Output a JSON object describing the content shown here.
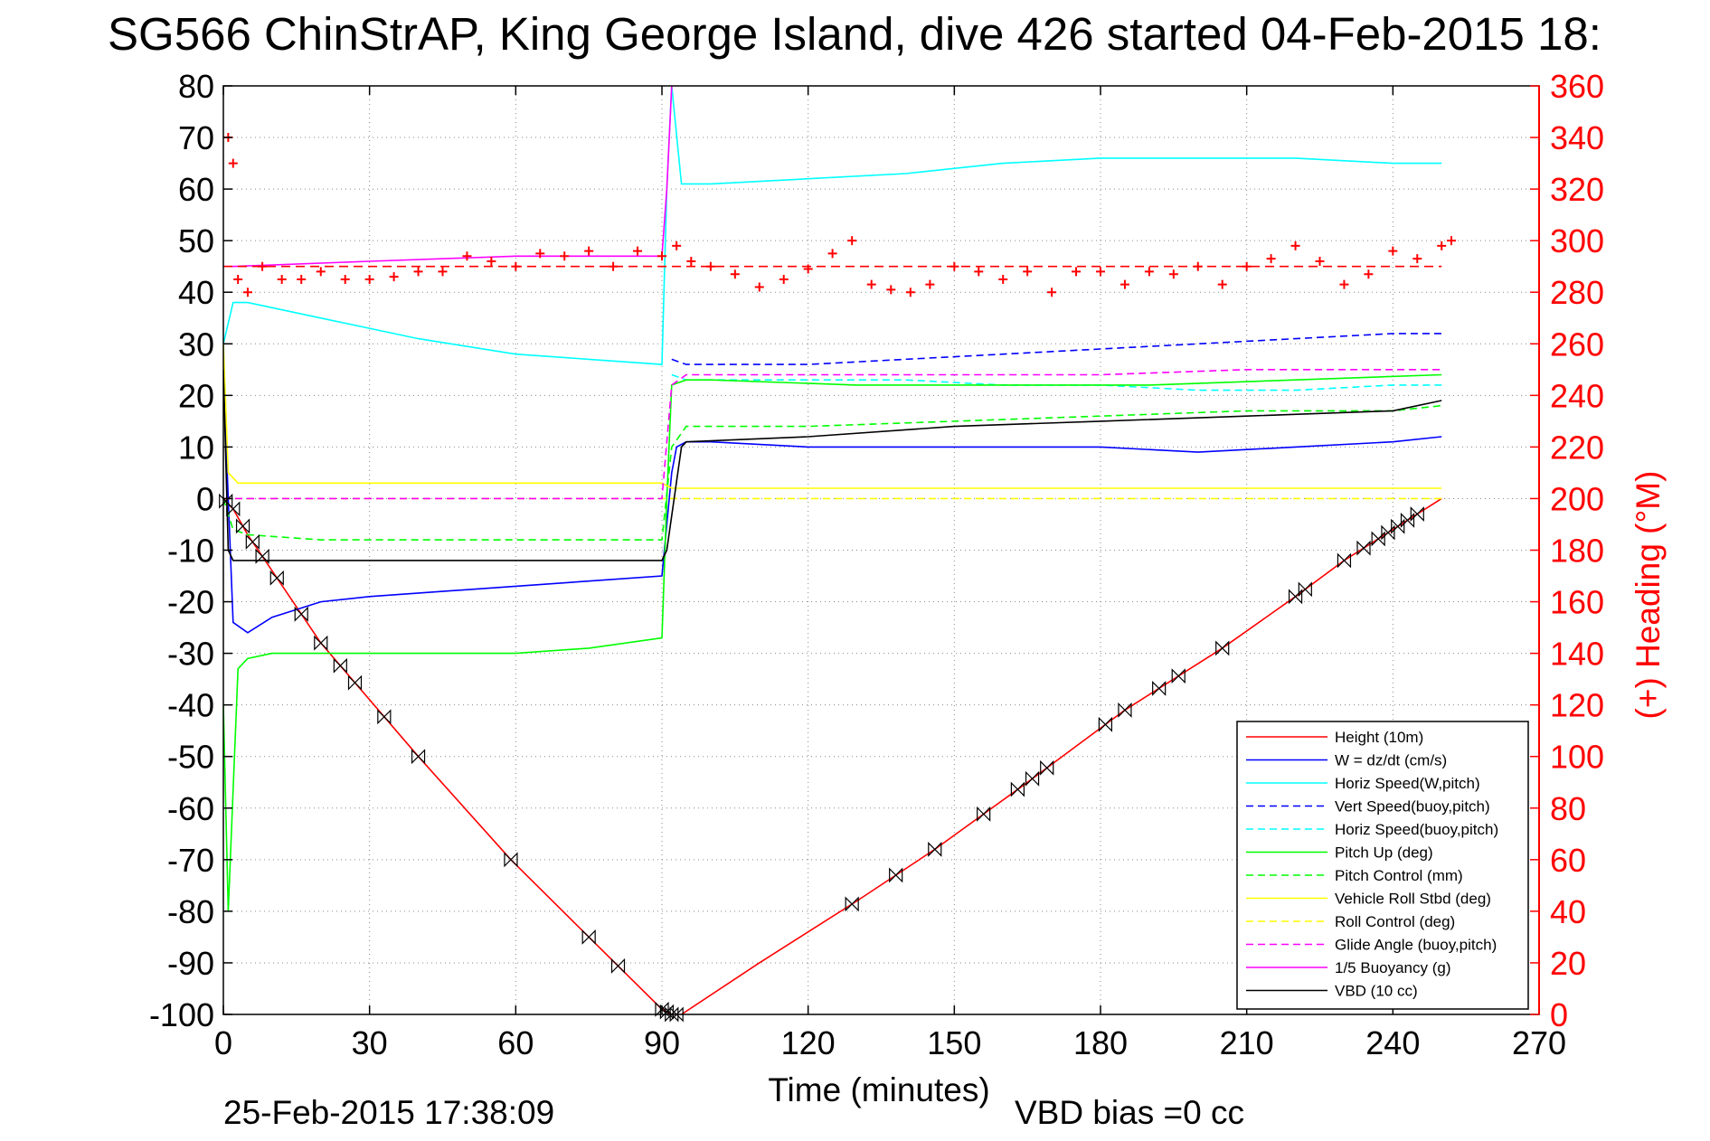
{
  "chart_data": {
    "type": "line",
    "title": "SG566 ChinStrAP, King George Island, dive 426 started 04-Feb-2015 18:",
    "xlabel": "Time (minutes)",
    "ylabel_right": "(+) Heading (°M)",
    "footer_left": "25-Feb-2015 17:38:09",
    "footer_right": "VBD bias =0 cc",
    "xlim": [
      0,
      270
    ],
    "ylim": [
      -100,
      80
    ],
    "y2lim": [
      0,
      360
    ],
    "x_ticks": [
      0,
      30,
      60,
      90,
      120,
      150,
      180,
      210,
      240,
      270
    ],
    "y_ticks": [
      80,
      70,
      60,
      50,
      40,
      30,
      20,
      10,
      0,
      -10,
      -20,
      -30,
      -40,
      -50,
      -60,
      -70,
      -80,
      -90,
      -100
    ],
    "y2_ticks": [
      360,
      340,
      320,
      300,
      280,
      260,
      240,
      220,
      200,
      180,
      160,
      140,
      120,
      100,
      80,
      60,
      40,
      20,
      0
    ],
    "grid": true,
    "legend_position": "lower-right",
    "colors": {
      "axis_right": "#ff0000",
      "axis_left": "#000000"
    },
    "series": [
      {
        "name": "Height (10m)",
        "color": "#ff0000",
        "dash": false,
        "x": [
          0,
          2,
          5,
          10,
          20,
          40,
          59,
          75,
          90,
          92,
          94,
          110,
          130,
          146,
          165,
          185,
          205,
          220,
          230,
          245,
          250
        ],
        "y": [
          0,
          -2,
          -7,
          -14,
          -28,
          -50,
          -70,
          -85,
          -99,
          -100,
          -100,
          -90,
          -78,
          -68,
          -55,
          -41,
          -29,
          -19,
          -12,
          -3,
          0
        ]
      },
      {
        "name": "W = dz/dt (cm/s)",
        "color": "#0000ff",
        "dash": false,
        "x": [
          0,
          1,
          2,
          5,
          10,
          20,
          30,
          45,
          60,
          75,
          90,
          92,
          93,
          95,
          100,
          120,
          140,
          160,
          180,
          200,
          220,
          240,
          250
        ],
        "y": [
          25,
          0,
          -24,
          -26,
          -23,
          -20,
          -19,
          -18,
          -17,
          -16,
          -15,
          5,
          10,
          11,
          11,
          10,
          10,
          10,
          10,
          9,
          10,
          11,
          12
        ]
      },
      {
        "name": "Horiz Speed(W,pitch)",
        "color": "#00ffff",
        "dash": false,
        "x": [
          0,
          2,
          5,
          10,
          20,
          40,
          60,
          75,
          90,
          91,
          92,
          94,
          100,
          120,
          140,
          160,
          180,
          200,
          220,
          240,
          250
        ],
        "y": [
          30,
          38,
          38,
          37,
          35,
          31,
          28,
          27,
          26,
          60,
          80,
          61,
          61,
          62,
          63,
          65,
          66,
          66,
          66,
          65,
          65
        ]
      },
      {
        "name": "Vert Speed(buoy,pitch)",
        "color": "#0000ff",
        "dash": true,
        "x": [
          92,
          95,
          100,
          120,
          140,
          160,
          180,
          200,
          220,
          240,
          250
        ],
        "y": [
          27,
          26,
          26,
          26,
          27,
          28,
          29,
          30,
          31,
          32,
          32
        ]
      },
      {
        "name": "Horiz Speed(buoy,pitch)",
        "color": "#00ffff",
        "dash": true,
        "x": [
          92,
          95,
          100,
          120,
          140,
          160,
          180,
          200,
          220,
          240,
          250
        ],
        "y": [
          24,
          23,
          23,
          23,
          23,
          22,
          22,
          21,
          21,
          22,
          22
        ]
      },
      {
        "name": "Pitch Up (deg)",
        "color": "#00ff00",
        "dash": false,
        "x": [
          0,
          1,
          3,
          5,
          10,
          20,
          40,
          60,
          75,
          90,
          91,
          92,
          95,
          100,
          130,
          160,
          190,
          220,
          250
        ],
        "y": [
          -40,
          -80,
          -33,
          -31,
          -30,
          -30,
          -30,
          -30,
          -29,
          -27,
          0,
          22,
          23,
          23,
          22,
          22,
          22,
          23,
          24
        ]
      },
      {
        "name": "Pitch Control (mm)",
        "color": "#00ff00",
        "dash": true,
        "x": [
          0,
          2,
          5,
          20,
          40,
          60,
          75,
          90,
          92,
          95,
          120,
          150,
          180,
          210,
          240,
          250
        ],
        "y": [
          0,
          -6,
          -7,
          -8,
          -8,
          -8,
          -8,
          -8,
          10,
          14,
          14,
          15,
          16,
          17,
          17,
          18
        ]
      },
      {
        "name": "Vehicle Roll Stbd (deg)",
        "color": "#ffff00",
        "dash": false,
        "x": [
          0,
          1,
          3,
          10,
          30,
          60,
          90,
          92,
          120,
          150,
          180,
          210,
          240,
          250
        ],
        "y": [
          30,
          5,
          3,
          3,
          3,
          3,
          3,
          2,
          2,
          2,
          2,
          2,
          2,
          2
        ]
      },
      {
        "name": "Roll Control (deg)",
        "color": "#ffff00",
        "dash": true,
        "x": [
          0,
          10,
          30,
          60,
          90,
          120,
          150,
          180,
          210,
          240,
          250
        ],
        "y": [
          0,
          0,
          0,
          0,
          0,
          0,
          0,
          0,
          0,
          0,
          0
        ]
      },
      {
        "name": "Glide Angle (buoy,pitch)",
        "color": "#ff00ff",
        "dash": true,
        "x": [
          0,
          30,
          60,
          90,
          92,
          95,
          120,
          150,
          180,
          210,
          240,
          250
        ],
        "y": [
          0,
          0,
          0,
          0,
          22,
          24,
          24,
          24,
          24,
          25,
          25,
          25
        ]
      },
      {
        "name": "1/5 Buoyancy (g)",
        "color": "#ff00ff",
        "dash": false,
        "x": [
          0,
          2,
          30,
          60,
          90,
          91,
          92
        ],
        "y": [
          45,
          45,
          46,
          47,
          47,
          60,
          80
        ]
      },
      {
        "name": "VBD (10 cc)",
        "color": "#000000",
        "dash": false,
        "x": [
          0,
          1,
          2,
          30,
          60,
          90,
          91,
          94,
          95,
          120,
          150,
          180,
          210,
          240,
          250
        ],
        "y": [
          25,
          -10,
          -12,
          -12,
          -12,
          -12,
          -10,
          10,
          11,
          12,
          14,
          15,
          16,
          17,
          19
        ]
      }
    ],
    "heading": {
      "name": "Heading (+)",
      "color": "#ff0000",
      "x": [
        0,
        1,
        2,
        3,
        5,
        8,
        12,
        16,
        20,
        25,
        30,
        35,
        40,
        45,
        50,
        55,
        60,
        65,
        70,
        75,
        80,
        85,
        90,
        93,
        96,
        100,
        105,
        110,
        115,
        120,
        125,
        129,
        133,
        137,
        141,
        145,
        150,
        155,
        160,
        165,
        170,
        175,
        180,
        185,
        190,
        195,
        200,
        205,
        210,
        215,
        220,
        225,
        230,
        235,
        240,
        245,
        250,
        252
      ],
      "y": [
        0,
        340,
        330,
        285,
        280,
        290,
        285,
        285,
        288,
        285,
        285,
        286,
        288,
        288,
        294,
        292,
        290,
        295,
        294,
        296,
        290,
        296,
        294,
        298,
        292,
        290,
        287,
        282,
        285,
        289,
        295,
        300,
        283,
        281,
        280,
        283,
        290,
        288,
        285,
        288,
        280,
        288,
        288,
        283,
        288,
        287,
        290,
        283,
        290,
        293,
        298,
        292,
        283,
        287,
        296,
        293,
        298,
        300
      ]
    },
    "heading_mean": {
      "color": "#ff0000",
      "dash": true,
      "value": 290
    },
    "markers": {
      "symbol": "bowtie",
      "color": "#000000",
      "x": [
        0.5,
        2,
        4,
        6,
        8,
        11,
        16,
        20,
        24,
        27,
        33,
        40,
        59,
        75,
        81,
        90,
        91,
        92,
        93,
        129,
        138,
        146,
        156,
        163,
        166,
        169,
        181,
        185,
        192,
        196,
        205,
        220,
        222,
        230,
        234,
        237,
        239,
        241,
        243,
        245
      ]
    }
  }
}
